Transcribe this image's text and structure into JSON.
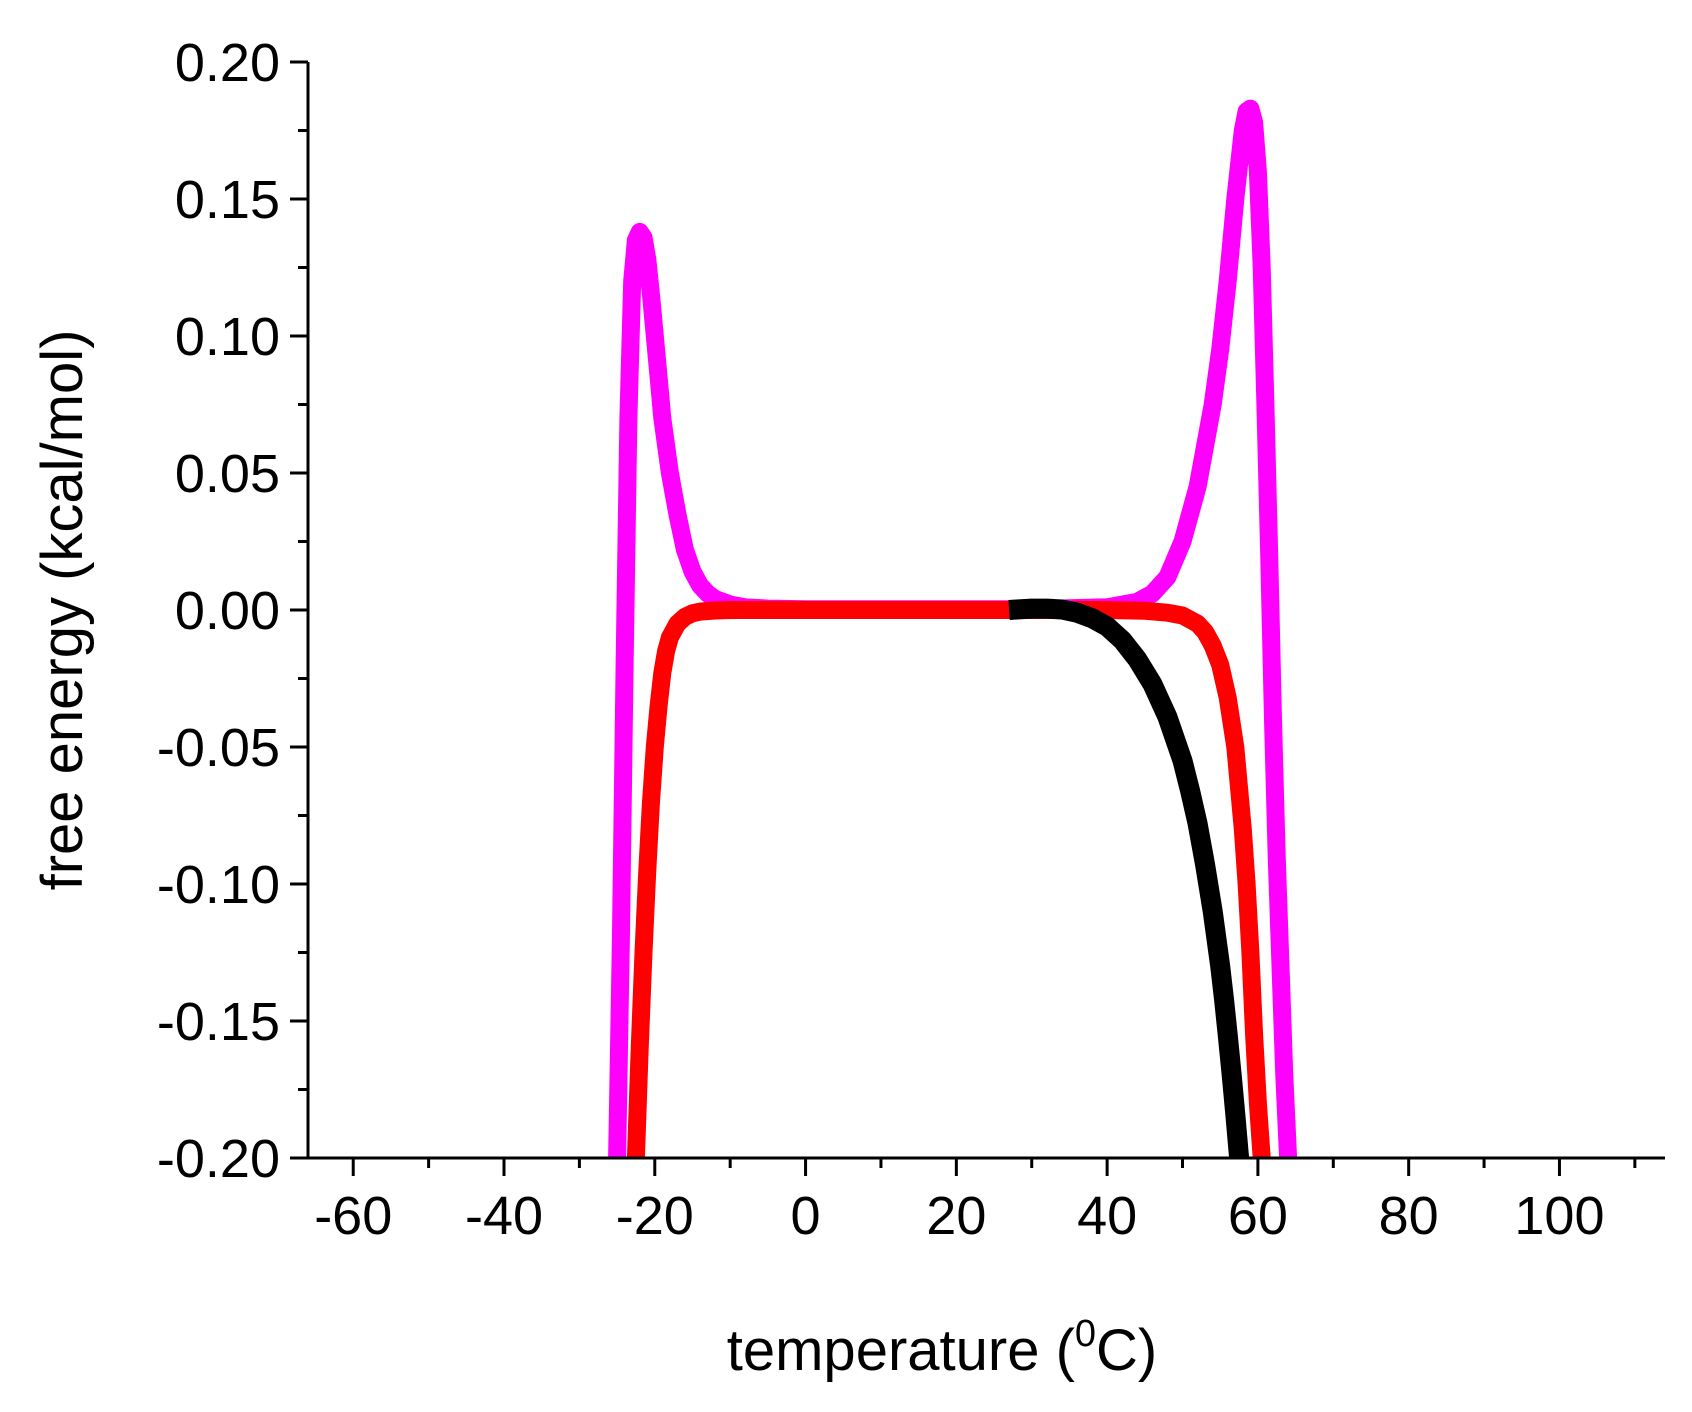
{
  "chart_data": {
    "type": "line",
    "title": "",
    "xlabel": "temperature (",
    "xlabel_sup": "0",
    "xlabel_suffix": "C)",
    "ylabel": "free energy (kcal/mol)",
    "xlim": [
      -66,
      114
    ],
    "ylim": [
      -0.2,
      0.2
    ],
    "x_ticks": [
      -60,
      -40,
      -20,
      0,
      20,
      40,
      60,
      80,
      100
    ],
    "x_tick_labels": [
      "-60",
      "-40",
      "-20",
      "0",
      "20",
      "40",
      "60",
      "80",
      "100"
    ],
    "x_minor_ticks": [
      -50,
      -30,
      -10,
      10,
      30,
      50,
      70,
      90,
      110
    ],
    "y_ticks": [
      -0.2,
      -0.15,
      -0.1,
      -0.05,
      0.0,
      0.05,
      0.1,
      0.15,
      0.2
    ],
    "y_tick_labels": [
      "-0.20",
      "-0.15",
      "-0.10",
      "-0.05",
      "0.00",
      "0.05",
      "0.10",
      "0.15",
      "0.20"
    ],
    "y_minor_ticks": [
      -0.175,
      -0.125,
      -0.075,
      -0.025,
      0.025,
      0.075,
      0.125,
      0.175
    ],
    "grid": false,
    "legend": "none",
    "series": [
      {
        "name": "magenta curve",
        "color": "#ff00ff",
        "x": [
          -25,
          -24.5,
          -24,
          -23.5,
          -23,
          -22.5,
          -22,
          -21.5,
          -21,
          -20.5,
          -20,
          -19.5,
          -19,
          -18,
          -17,
          -16,
          -15,
          -14,
          -13,
          -12,
          -10,
          -8,
          -5,
          0,
          10,
          20,
          30,
          40,
          44,
          46,
          48,
          50,
          52,
          54,
          55,
          56,
          57,
          58,
          58.5,
          59,
          59.5,
          60,
          60.5,
          61,
          61.5,
          62,
          62.5,
          63,
          63.5,
          64
        ],
        "y": [
          -0.2,
          -0.12,
          -0.02,
          0.07,
          0.12,
          0.135,
          0.138,
          0.136,
          0.128,
          0.115,
          0.1,
          0.085,
          0.07,
          0.05,
          0.035,
          0.022,
          0.014,
          0.009,
          0.006,
          0.004,
          0.002,
          0.001,
          0.0005,
          0.0003,
          0.0003,
          0.0003,
          0.0003,
          0.001,
          0.003,
          0.006,
          0.012,
          0.025,
          0.045,
          0.075,
          0.095,
          0.12,
          0.15,
          0.175,
          0.182,
          0.183,
          0.178,
          0.16,
          0.125,
          0.075,
          0.02,
          -0.04,
          -0.09,
          -0.13,
          -0.17,
          -0.2
        ]
      },
      {
        "name": "red curve",
        "color": "#ff0000",
        "x": [
          -22.5,
          -22,
          -21.5,
          -21,
          -20.5,
          -20,
          -19.5,
          -19,
          -18.5,
          -18,
          -17,
          -16,
          -15,
          -14,
          -12,
          -10,
          -5,
          0,
          10,
          20,
          30,
          40,
          45,
          48,
          50,
          52,
          53,
          54,
          55,
          56,
          57,
          58,
          58.5,
          59,
          59.5,
          60,
          60.5
        ],
        "y": [
          -0.2,
          -0.16,
          -0.125,
          -0.095,
          -0.07,
          -0.05,
          -0.035,
          -0.023,
          -0.015,
          -0.01,
          -0.005,
          -0.0025,
          -0.0012,
          -0.0006,
          -0.0002,
          0,
          0,
          0,
          0,
          0,
          0,
          0,
          -0.0003,
          -0.001,
          -0.002,
          -0.005,
          -0.008,
          -0.013,
          -0.02,
          -0.032,
          -0.05,
          -0.08,
          -0.1,
          -0.125,
          -0.155,
          -0.18,
          -0.2
        ]
      },
      {
        "name": "black curve",
        "color": "#000000",
        "x": [
          27,
          28,
          30,
          32,
          34,
          36,
          38,
          40,
          42,
          44,
          46,
          48,
          50,
          51,
          52,
          53,
          54,
          55,
          55.5,
          56,
          56.5,
          57,
          57.5
        ],
        "y": [
          0,
          0.0002,
          0.0005,
          0.0005,
          0.0002,
          -0.001,
          -0.003,
          -0.006,
          -0.011,
          -0.018,
          -0.027,
          -0.039,
          -0.055,
          -0.066,
          -0.078,
          -0.093,
          -0.11,
          -0.13,
          -0.142,
          -0.155,
          -0.169,
          -0.184,
          -0.2
        ]
      }
    ]
  }
}
